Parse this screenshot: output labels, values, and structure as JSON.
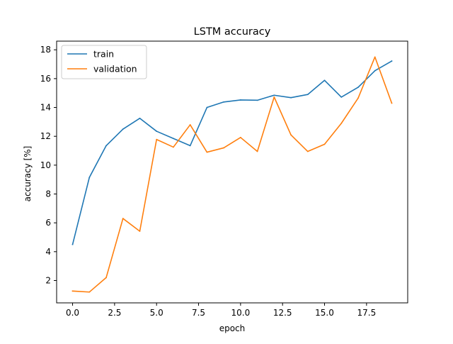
{
  "chart_data": {
    "type": "line",
    "title": "LSTM accuracy",
    "xlabel": "epoch",
    "ylabel": "accuracy [%]",
    "xlim": [
      -0.95,
      19.95
    ],
    "ylim": [
      0.45,
      18.6
    ],
    "x_ticks": [
      0,
      2.5,
      5,
      7.5,
      10,
      12.5,
      15,
      17.5
    ],
    "x_tick_labels": [
      "0.0",
      "2.5",
      "5.0",
      "7.5",
      "10.0",
      "12.5",
      "15.0",
      "17.5"
    ],
    "y_ticks": [
      2,
      4,
      6,
      8,
      10,
      12,
      14,
      16,
      18
    ],
    "y_tick_labels": [
      "2",
      "4",
      "6",
      "8",
      "10",
      "12",
      "14",
      "16",
      "18"
    ],
    "grid": false,
    "legend_position": "upper-left",
    "x": [
      0,
      1,
      2,
      3,
      4,
      5,
      6,
      7,
      8,
      9,
      10,
      11,
      12,
      13,
      14,
      15,
      16,
      17,
      18,
      19
    ],
    "series": [
      {
        "name": "train",
        "color": "#1f77b4",
        "values": [
          4.5,
          9.15,
          11.35,
          12.5,
          13.25,
          12.35,
          11.85,
          11.35,
          14.0,
          14.38,
          14.52,
          14.5,
          14.85,
          14.68,
          14.9,
          15.88,
          14.72,
          15.4,
          16.55,
          17.22
        ]
      },
      {
        "name": "validation",
        "color": "#ff7f0e",
        "values": [
          1.27,
          1.2,
          2.2,
          6.3,
          5.42,
          11.78,
          11.25,
          12.8,
          10.9,
          11.2,
          11.92,
          10.95,
          14.72,
          12.1,
          10.95,
          11.45,
          12.9,
          14.65,
          17.5,
          14.3
        ]
      }
    ]
  }
}
